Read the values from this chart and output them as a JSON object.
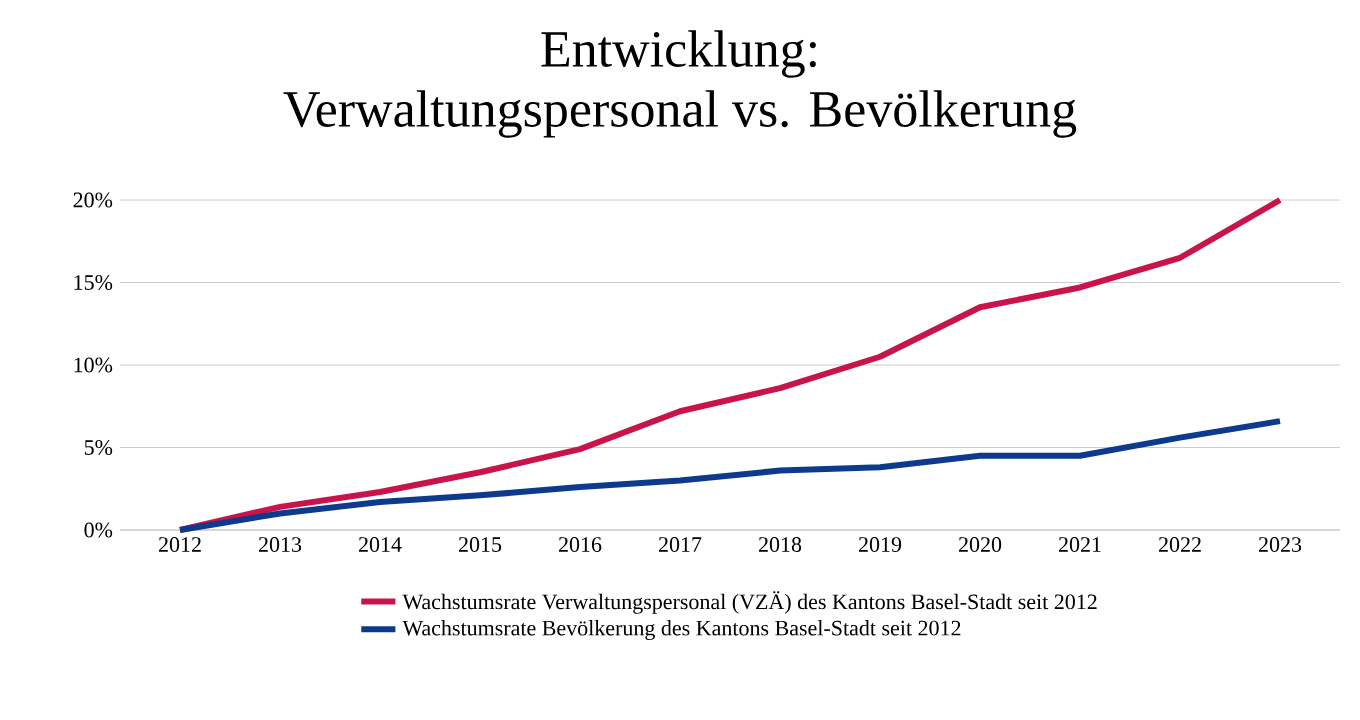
{
  "chart_data": {
    "type": "line",
    "title": "Entwicklung:\nVerwaltungspersonal vs. Bevölkerung",
    "categories": [
      "2012",
      "2013",
      "2014",
      "2015",
      "2016",
      "2017",
      "2018",
      "2019",
      "2020",
      "2021",
      "2022",
      "2023"
    ],
    "series": [
      {
        "name": "Wachstumsrate Verwaltungspersonal (VZÄ) des Kantons Basel-Stadt seit 2012",
        "color": "#c8144a",
        "values": [
          0,
          1.4,
          2.3,
          3.5,
          4.9,
          7.2,
          8.6,
          10.5,
          13.5,
          14.7,
          16.5,
          20
        ]
      },
      {
        "name": "Wachstumsrate Bevölkerung des Kantons Basel-Stadt seit 2012",
        "color": "#0d3a8c",
        "values": [
          0,
          1.0,
          1.7,
          2.1,
          2.6,
          3.0,
          3.6,
          3.8,
          4.5,
          4.5,
          5.6,
          6.6
        ]
      }
    ],
    "ylim": [
      0,
      20
    ],
    "yticks": [
      {
        "value": 0,
        "label": "0%"
      },
      {
        "value": 5,
        "label": "5%"
      },
      {
        "value": 10,
        "label": "10%"
      },
      {
        "value": 15,
        "label": "15%"
      },
      {
        "value": 20,
        "label": "20%"
      }
    ],
    "grid": "y",
    "legend": "bottom",
    "marker": "none",
    "line_style": "solid"
  }
}
